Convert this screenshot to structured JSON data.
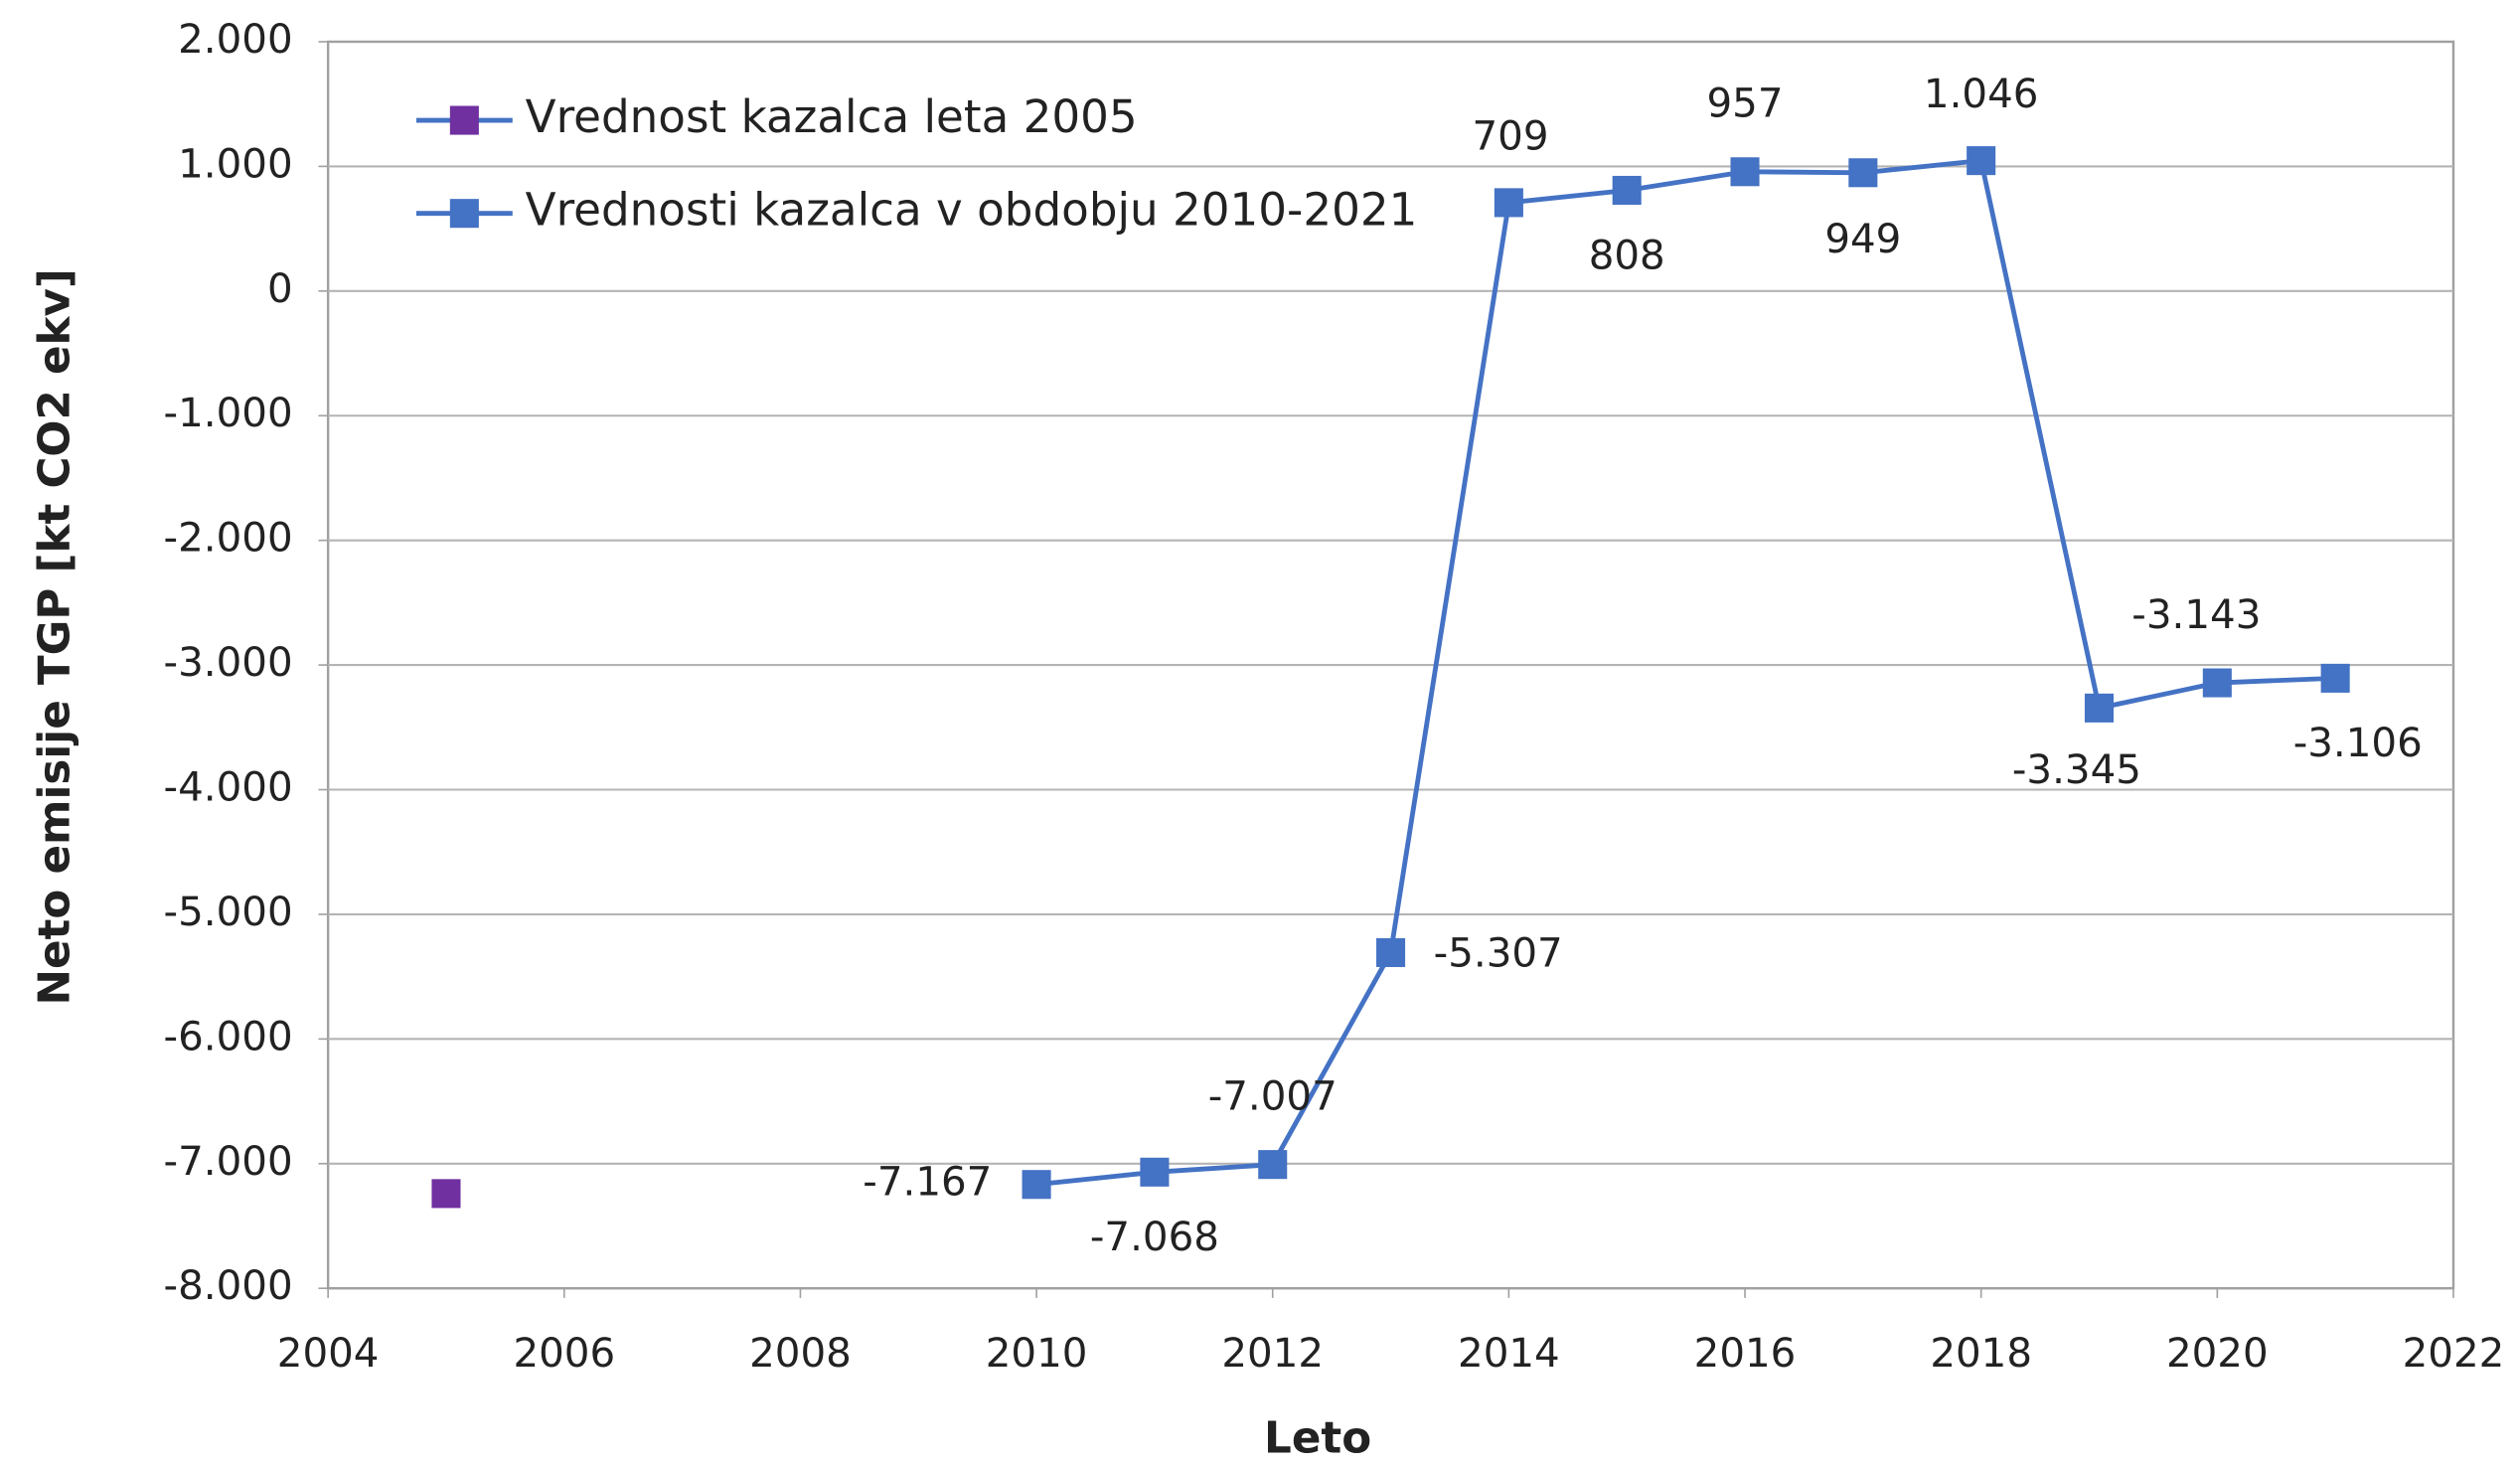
{
  "chart_data": {
    "type": "line",
    "x_label": "Leto",
    "y_label": "Neto emisije TGP [kt CO2 ekv]",
    "xlim": [
      2004,
      2022
    ],
    "xticks": [
      2004,
      2006,
      2008,
      2010,
      2012,
      2014,
      2016,
      2018,
      2020,
      2022
    ],
    "ylim": [
      -8000,
      2000
    ],
    "yticks": [
      {
        "value": 2000,
        "label": "2.000"
      },
      {
        "value": 1000,
        "label": "1.000"
      },
      0,
      {
        "value": -1000,
        "label": "-1.000"
      },
      {
        "value": -2000,
        "label": "-2.000"
      },
      {
        "value": -3000,
        "label": "-3.000"
      },
      {
        "value": -4000,
        "label": "-4.000"
      },
      {
        "value": -5000,
        "label": "-5.000"
      },
      {
        "value": -6000,
        "label": "-6.000"
      },
      {
        "value": -7000,
        "label": "-7.000"
      },
      {
        "value": -8000,
        "label": "-8.000"
      }
    ],
    "grid": true,
    "legend": "top-left",
    "series": [
      {
        "name": "Vrednost kazalca leta 2005",
        "color": "#7030a0",
        "x": [
          2005
        ],
        "values": [
          -7240
        ]
      },
      {
        "name": "Vrednosti kazalca v obdobju 2010-2021",
        "color": "#4472c4",
        "x": [
          2010,
          2011,
          2012,
          2013,
          2014,
          2015,
          2016,
          2017,
          2018,
          2019,
          2020,
          2021
        ],
        "values": [
          -7167,
          -7068,
          -7007,
          -5307,
          709,
          808,
          957,
          949,
          1046,
          -3345,
          -3143,
          -3106
        ],
        "value_labels": [
          "-7.167",
          "-7.068",
          "-7.007",
          "-5.307",
          "709",
          "808",
          "957",
          "949",
          "1.046",
          "-3.345",
          "-3.143",
          "-3.106"
        ]
      }
    ]
  }
}
